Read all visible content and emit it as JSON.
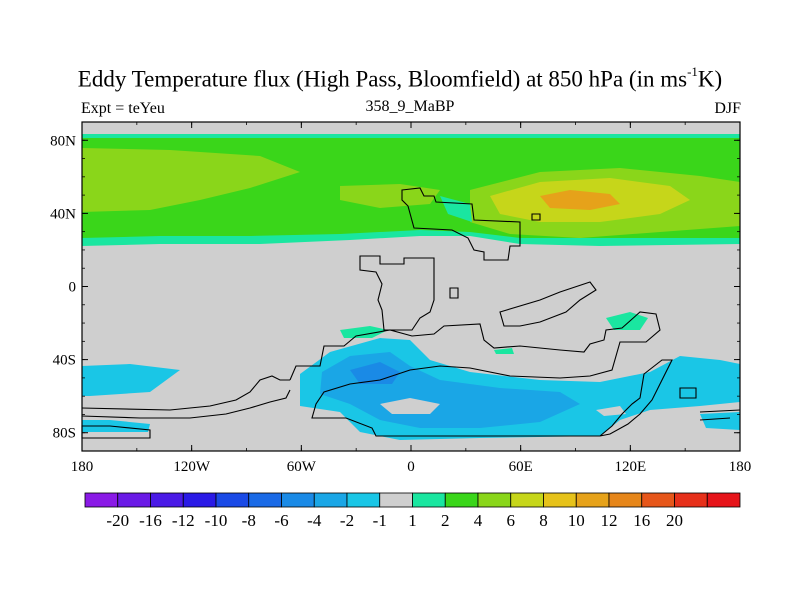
{
  "title": {
    "main": "Eddy Temperature flux (High Pass, Bloomfield) at 850 hPa (in ms",
    "exponent": "-1",
    "suffix": "K)"
  },
  "subtitle_left": "Expt = teYeu",
  "subtitle_center": "358_9_MaBP",
  "subtitle_right": "DJF",
  "lat_ticks": [
    "80N",
    "40N",
    "0",
    "40S",
    "80S"
  ],
  "lat_values": [
    80,
    40,
    0,
    -40,
    -80
  ],
  "lon_ticks": [
    "180",
    "120W",
    "60W",
    "0",
    "60E",
    "120E",
    "180"
  ],
  "lon_values": [
    -180,
    -120,
    -60,
    0,
    60,
    120,
    180
  ],
  "colorbar": {
    "colors": [
      "#8a1ae6",
      "#6a1ae6",
      "#4a1ae6",
      "#2a1ae6",
      "#1a4ae6",
      "#1a6ae6",
      "#1a8ae6",
      "#1aa6e6",
      "#1ac6e6",
      "#cfcfcf",
      "#1ae6a0",
      "#3ad61a",
      "#8ad61a",
      "#c6d61a",
      "#e6c21a",
      "#e6a21a",
      "#e6861a",
      "#e6561a",
      "#e6301a",
      "#e6141a"
    ],
    "labels": [
      "-20",
      "-16",
      "-12",
      "-10",
      "-8",
      "-6",
      "-4",
      "-2",
      "-1",
      "1",
      "2",
      "4",
      "6",
      "8",
      "10",
      "12",
      "16",
      "20"
    ]
  },
  "map_colors": {
    "missing": "#cfcfcf",
    "lightgreen": "#1ae6a0",
    "green": "#3ad61a",
    "yellowgreen": "#8ad61a",
    "yellow": "#c6d61a",
    "orange": "#e6a21a",
    "cyan": "#1ac6e6",
    "blue": "#1aa6e6",
    "darkblue": "#1a8ae6"
  }
}
